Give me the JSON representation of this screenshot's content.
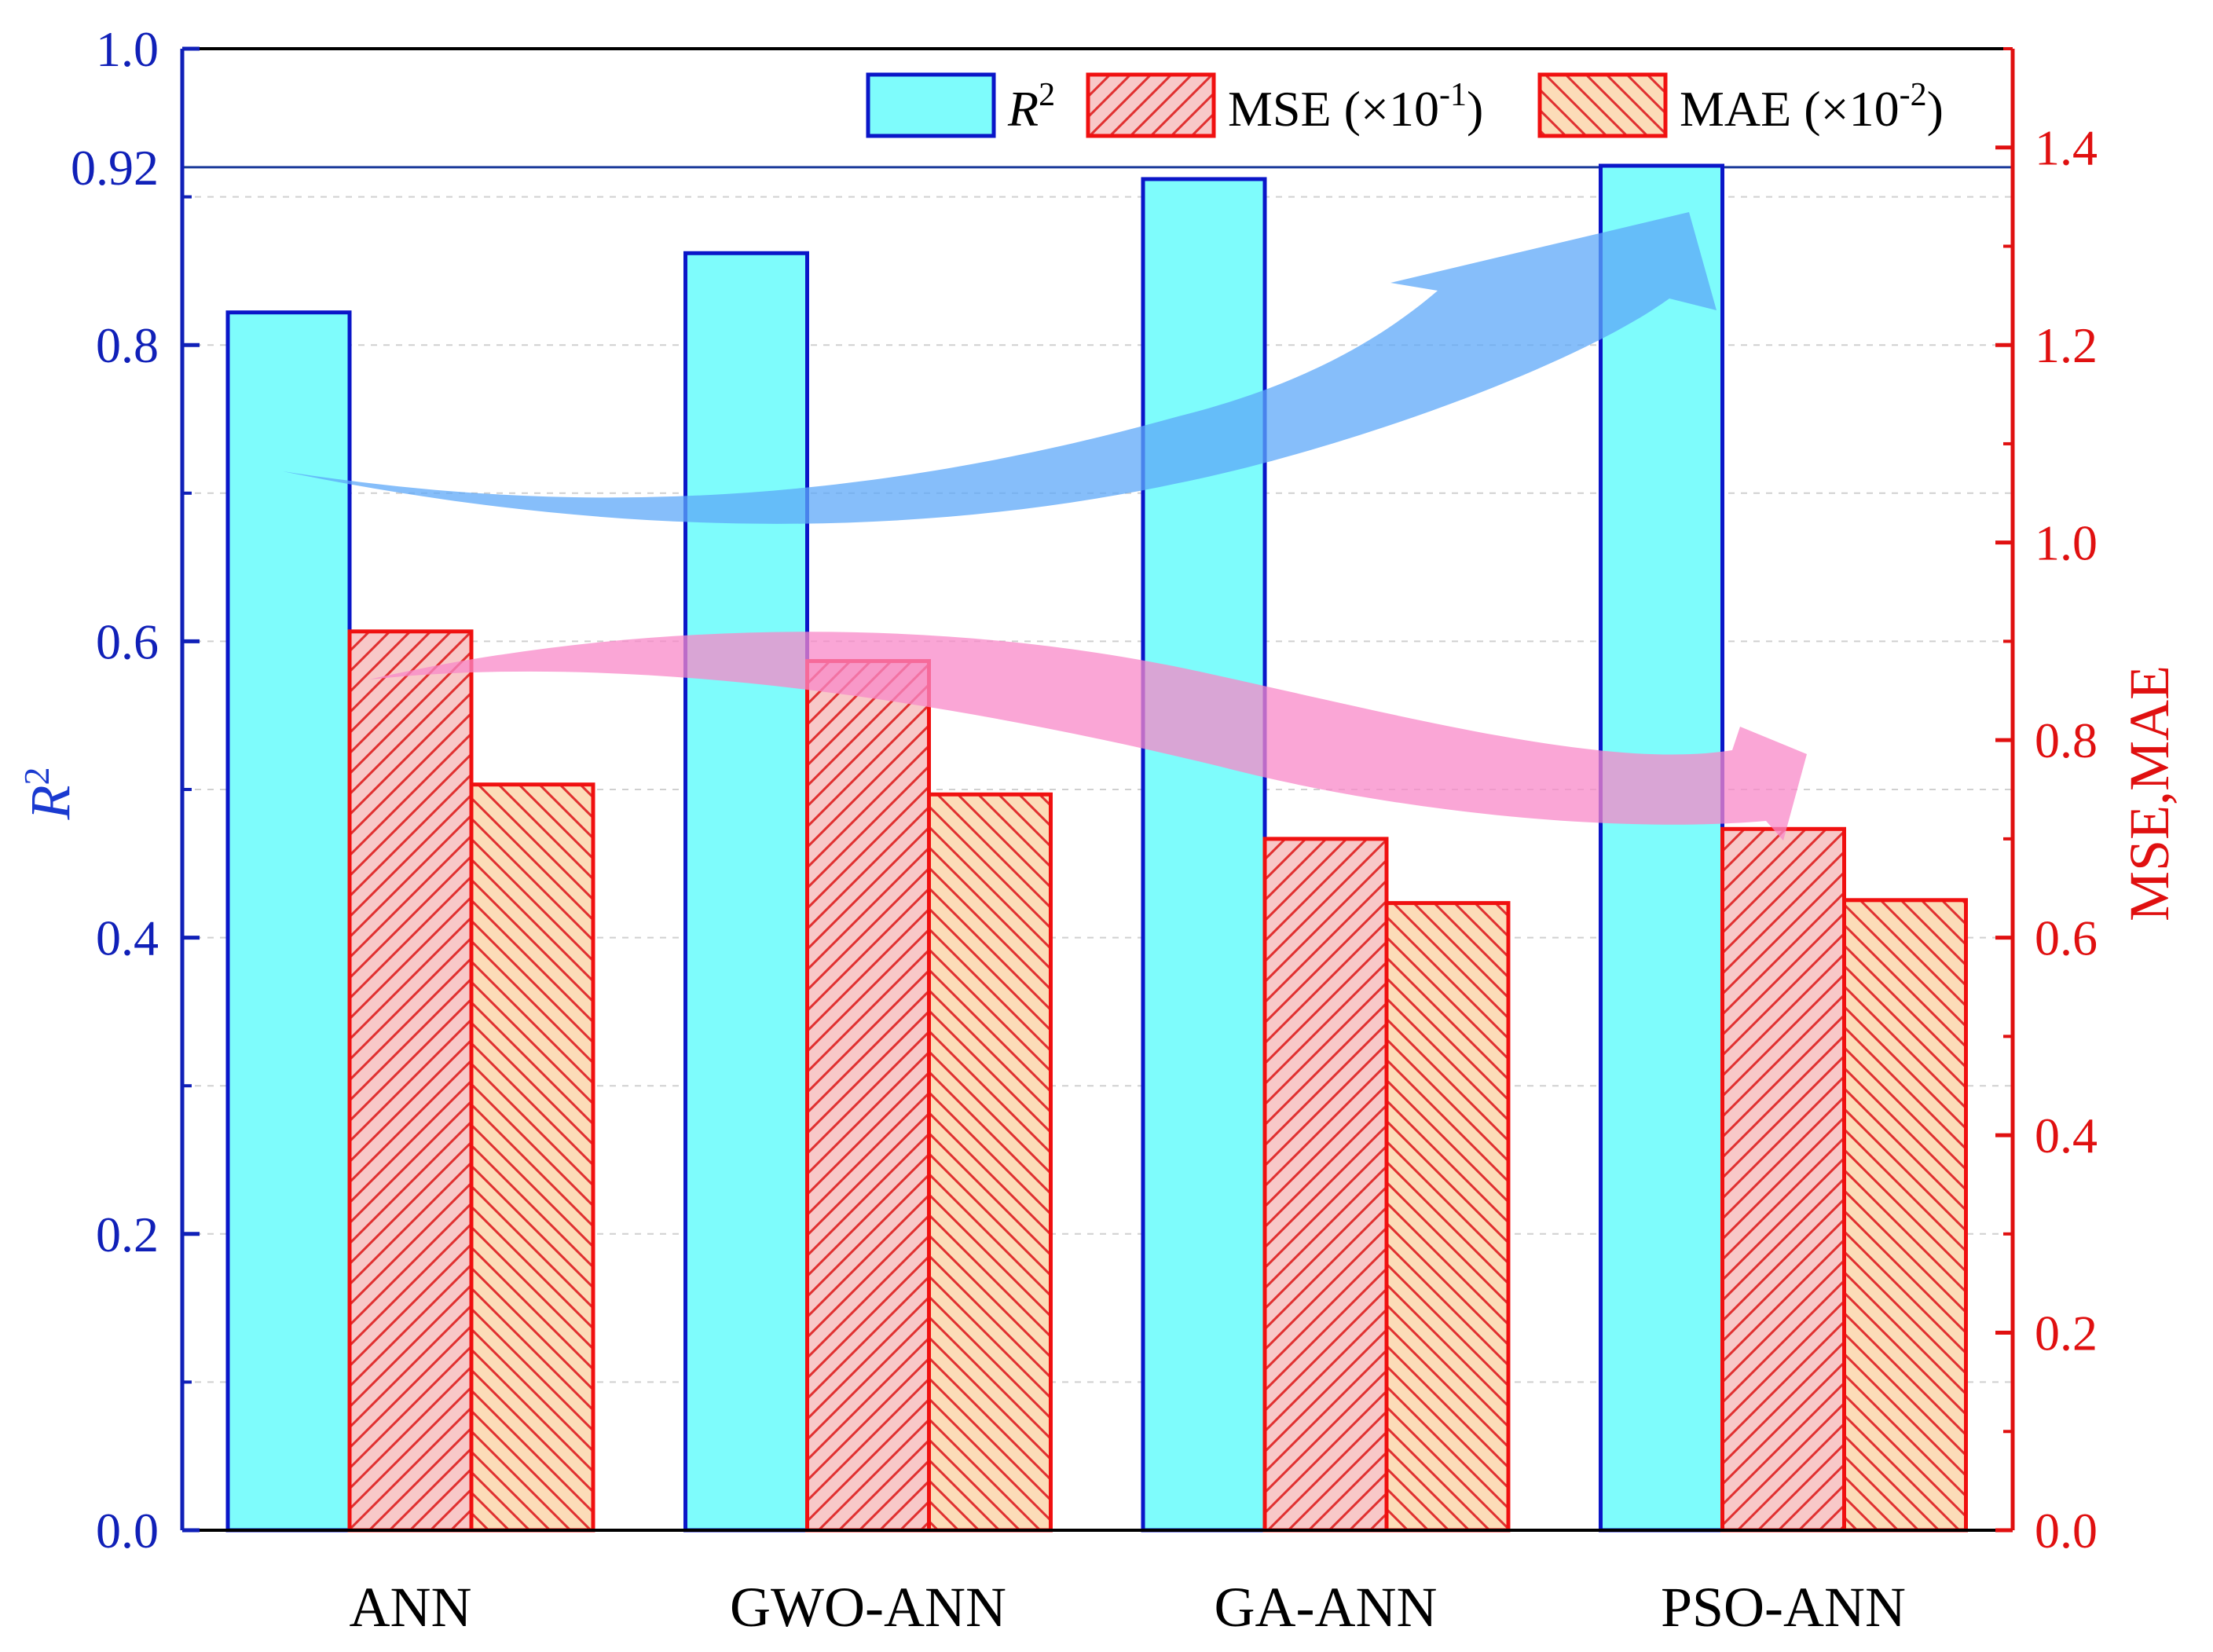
{
  "chart_data": {
    "type": "bar",
    "categories": [
      "ANN",
      "GWO-ANN",
      "GA-ANN",
      "PSO-ANN"
    ],
    "series": [
      {
        "name": "R",
        "sup": "2",
        "axis": "left",
        "values": [
          0.822,
          0.862,
          0.912,
          0.921
        ]
      },
      {
        "name": "MSE (×10",
        "sup": "-1",
        "suffix": ")",
        "axis": "right",
        "values": [
          0.91,
          0.88,
          0.7,
          0.71
        ]
      },
      {
        "name": "MAE (×10",
        "sup": "-2",
        "suffix": ")",
        "axis": "right",
        "values": [
          0.755,
          0.745,
          0.635,
          0.638
        ]
      }
    ],
    "left_axis": {
      "label": "R",
      "label_sup": "2",
      "ylim": [
        0,
        1.0
      ],
      "ticks": [
        "0.0",
        "0.2",
        "0.4",
        "0.6",
        "0.8",
        "1.0"
      ],
      "extra_tick": "0.92",
      "reference_line": 0.92
    },
    "right_axis": {
      "label": "MSE,MAE",
      "ylim": [
        0,
        1.5
      ],
      "ticks": [
        "0.0",
        "0.2",
        "0.4",
        "0.6",
        "0.8",
        "1.0",
        "1.2",
        "1.4"
      ]
    },
    "legend": "top-right",
    "grid": "horizontal dashed",
    "trend_arrows": [
      "R2 increasing",
      "MSE, MAE decreasing"
    ]
  },
  "colors": {
    "r2_fill": "#7efcfc",
    "r2_edge": "#0a16c8",
    "mse_fill": "#f8c8c8",
    "mse_hatch": "#e03030",
    "mae_fill": "#fcdcb8",
    "mae_hatch": "#e03030",
    "bar_edge_red": "#f01010",
    "left_axis": "#1020b8",
    "right_axis": "#e01010",
    "arrow_up": "#5ea8f8",
    "arrow_down": "#f888c8"
  }
}
